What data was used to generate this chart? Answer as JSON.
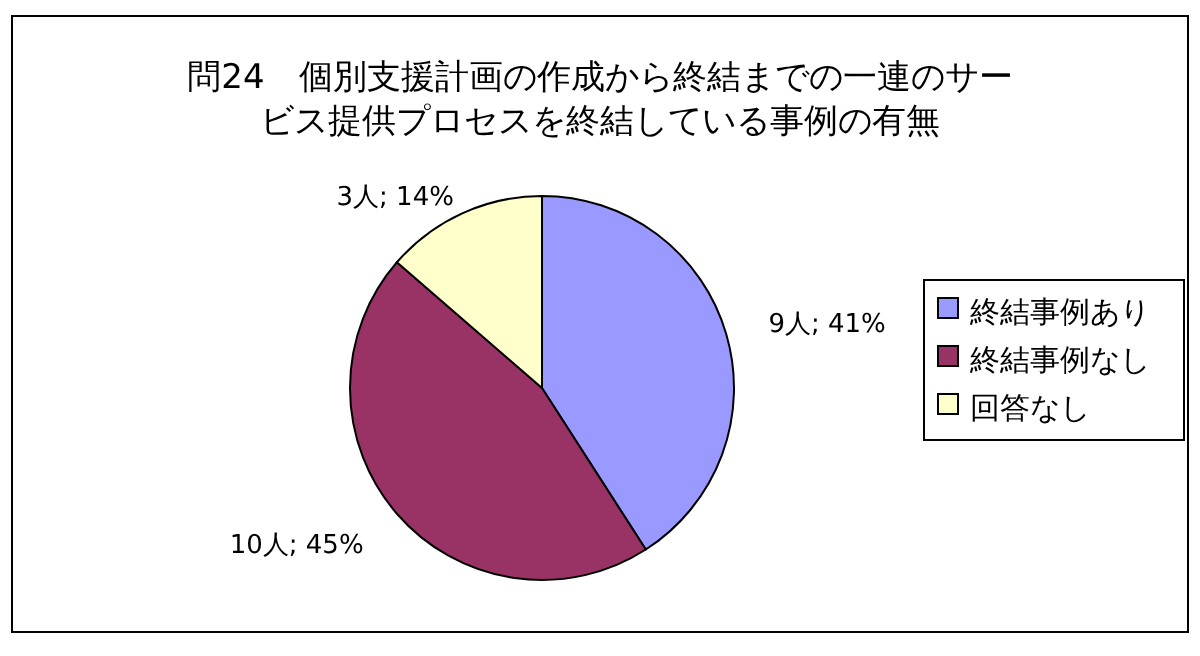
{
  "chart_data": {
    "type": "pie",
    "title": "問24　個別支援計画の作成から終結までの一連のサービス提供プロセスを終結している事例の有無",
    "categories": [
      "終結事例あり",
      "終結事例なし",
      "回答なし"
    ],
    "values": [
      9,
      10,
      3
    ],
    "value_labels": [
      "9人; 41%",
      "10人; 45%",
      "3人; 14%"
    ],
    "colors": [
      "#9999ff",
      "#993366",
      "#ffffcc"
    ],
    "legend": "right"
  }
}
